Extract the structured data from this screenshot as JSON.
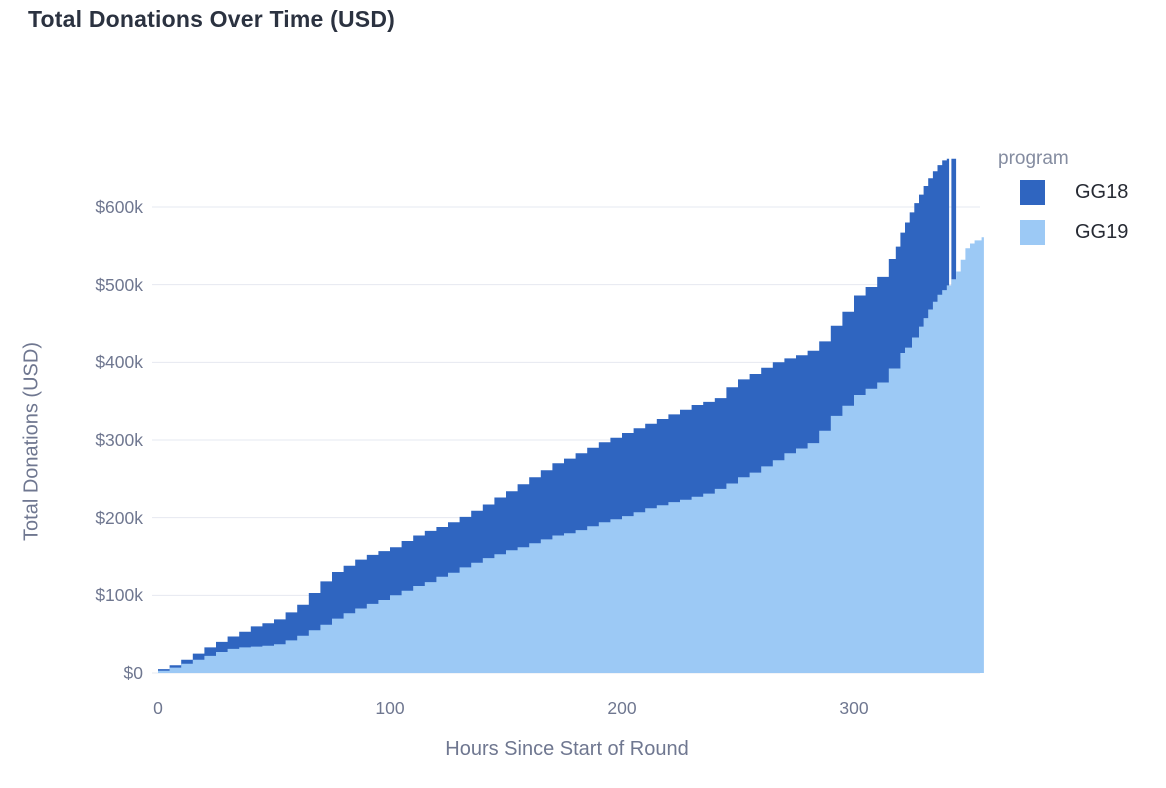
{
  "title": "Total Donations Over Time (USD)",
  "colors": {
    "gg18": "#2f65c0",
    "gg19": "#9cc9f5",
    "grid": "#e6e8f0",
    "axis_text": "#6f7790",
    "title_text": "#2b3240",
    "legend_title_text": "#848ca0",
    "legend_label_text": "#262a33",
    "background": "#ffffff"
  },
  "chart_data": {
    "type": "area",
    "title": "Total Donations Over Time (USD)",
    "xlabel": "Hours Since Start of Round",
    "ylabel": "Total Donations (USD)",
    "units": "USD",
    "interpolation": "step-after",
    "grid": true,
    "xlim": [
      0,
      356
    ],
    "ylim": [
      0,
      673000
    ],
    "x_ticks": [
      0,
      100,
      200,
      300
    ],
    "y_ticks": [
      {
        "value": 0,
        "label": "$0"
      },
      {
        "value": 100000,
        "label": "$100k"
      },
      {
        "value": 200000,
        "label": "$200k"
      },
      {
        "value": 300000,
        "label": "$300k"
      },
      {
        "value": 400000,
        "label": "$400k"
      },
      {
        "value": 500000,
        "label": "$500k"
      },
      {
        "value": 600000,
        "label": "$600k"
      }
    ],
    "legend": {
      "title": "program",
      "position": "top-right",
      "entries": [
        {
          "label": "GG18",
          "color": "#2f65c0"
        },
        {
          "label": "GG19",
          "color": "#9cc9f5"
        }
      ]
    },
    "series": [
      {
        "name": "GG18",
        "color": "#2f65c0",
        "note": "cumulative donations; data gap at hours 340-342 then final bar at 342-343",
        "segments": [
          [
            [
              0,
              5000
            ],
            [
              5,
              10000
            ],
            [
              10,
              17000
            ],
            [
              15,
              25000
            ],
            [
              20,
              33000
            ],
            [
              25,
              40000
            ],
            [
              30,
              47000
            ],
            [
              35,
              53000
            ],
            [
              40,
              60000
            ],
            [
              45,
              64000
            ],
            [
              50,
              69000
            ],
            [
              55,
              78000
            ],
            [
              60,
              88000
            ],
            [
              65,
              103000
            ],
            [
              70,
              118000
            ],
            [
              75,
              130000
            ],
            [
              80,
              138000
            ],
            [
              85,
              146000
            ],
            [
              90,
              152000
            ],
            [
              95,
              157000
            ],
            [
              100,
              162000
            ],
            [
              105,
              170000
            ],
            [
              110,
              177000
            ],
            [
              115,
              183000
            ],
            [
              120,
              188000
            ],
            [
              125,
              194000
            ],
            [
              130,
              201000
            ],
            [
              135,
              209000
            ],
            [
              140,
              217000
            ],
            [
              145,
              226000
            ],
            [
              150,
              234000
            ],
            [
              155,
              243000
            ],
            [
              160,
              252000
            ],
            [
              165,
              261000
            ],
            [
              170,
              270000
            ],
            [
              175,
              276000
            ],
            [
              180,
              283000
            ],
            [
              185,
              290000
            ],
            [
              190,
              297000
            ],
            [
              195,
              303000
            ],
            [
              200,
              309000
            ],
            [
              205,
              315000
            ],
            [
              210,
              321000
            ],
            [
              215,
              327000
            ],
            [
              220,
              333000
            ],
            [
              225,
              339000
            ],
            [
              230,
              345000
            ],
            [
              235,
              349000
            ],
            [
              240,
              354000
            ],
            [
              245,
              368000
            ],
            [
              250,
              378000
            ],
            [
              255,
              385000
            ],
            [
              260,
              393000
            ],
            [
              265,
              400000
            ],
            [
              270,
              405000
            ],
            [
              275,
              409000
            ],
            [
              280,
              415000
            ],
            [
              285,
              427000
            ],
            [
              290,
              447000
            ],
            [
              295,
              465000
            ],
            [
              300,
              486000
            ],
            [
              305,
              497000
            ],
            [
              310,
              510000
            ],
            [
              315,
              533000
            ],
            [
              318,
              549000
            ],
            [
              320,
              567000
            ],
            [
              322,
              580000
            ],
            [
              324,
              593000
            ],
            [
              326,
              605000
            ],
            [
              328,
              616000
            ],
            [
              330,
              627000
            ],
            [
              332,
              637000
            ],
            [
              334,
              646000
            ],
            [
              336,
              654000
            ],
            [
              338,
              660000
            ],
            [
              340,
              662000
            ]
          ],
          [
            [
              342,
              662000
            ],
            [
              343,
              662000
            ]
          ]
        ]
      },
      {
        "name": "GG19",
        "color": "#9cc9f5",
        "note": "cumulative donations through hour 355",
        "segments": [
          [
            [
              0,
              3000
            ],
            [
              5,
              7000
            ],
            [
              10,
              12000
            ],
            [
              15,
              17000
            ],
            [
              20,
              22000
            ],
            [
              25,
              27000
            ],
            [
              30,
              31000
            ],
            [
              35,
              33000
            ],
            [
              40,
              34000
            ],
            [
              45,
              35000
            ],
            [
              50,
              37000
            ],
            [
              55,
              42000
            ],
            [
              60,
              48000
            ],
            [
              65,
              55000
            ],
            [
              70,
              62000
            ],
            [
              75,
              70000
            ],
            [
              80,
              77000
            ],
            [
              85,
              83000
            ],
            [
              90,
              89000
            ],
            [
              95,
              94000
            ],
            [
              100,
              100000
            ],
            [
              105,
              106000
            ],
            [
              110,
              112000
            ],
            [
              115,
              117000
            ],
            [
              120,
              124000
            ],
            [
              125,
              129000
            ],
            [
              130,
              136000
            ],
            [
              135,
              142000
            ],
            [
              140,
              148000
            ],
            [
              145,
              153000
            ],
            [
              150,
              158000
            ],
            [
              155,
              162000
            ],
            [
              160,
              167000
            ],
            [
              165,
              172000
            ],
            [
              170,
              177000
            ],
            [
              175,
              180000
            ],
            [
              180,
              184000
            ],
            [
              185,
              189000
            ],
            [
              190,
              194000
            ],
            [
              195,
              198000
            ],
            [
              200,
              202000
            ],
            [
              205,
              207000
            ],
            [
              210,
              212000
            ],
            [
              215,
              216000
            ],
            [
              220,
              220000
            ],
            [
              225,
              223000
            ],
            [
              230,
              227000
            ],
            [
              235,
              231000
            ],
            [
              240,
              237000
            ],
            [
              245,
              244000
            ],
            [
              250,
              252000
            ],
            [
              255,
              258000
            ],
            [
              260,
              266000
            ],
            [
              265,
              274000
            ],
            [
              270,
              283000
            ],
            [
              275,
              289000
            ],
            [
              280,
              296000
            ],
            [
              285,
              312000
            ],
            [
              290,
              331000
            ],
            [
              295,
              344000
            ],
            [
              300,
              358000
            ],
            [
              305,
              366000
            ],
            [
              310,
              374000
            ],
            [
              315,
              392000
            ],
            [
              320,
              412000
            ],
            [
              322,
              419000
            ],
            [
              325,
              432000
            ],
            [
              328,
              446000
            ],
            [
              330,
              457000
            ],
            [
              332,
              468000
            ],
            [
              334,
              478000
            ],
            [
              336,
              487000
            ],
            [
              338,
              493000
            ],
            [
              340,
              499000
            ],
            [
              342,
              507000
            ],
            [
              344,
              517000
            ],
            [
              346,
              532000
            ],
            [
              348,
              547000
            ],
            [
              350,
              553000
            ],
            [
              352,
              557000
            ],
            [
              355,
              561000
            ]
          ]
        ]
      }
    ]
  }
}
